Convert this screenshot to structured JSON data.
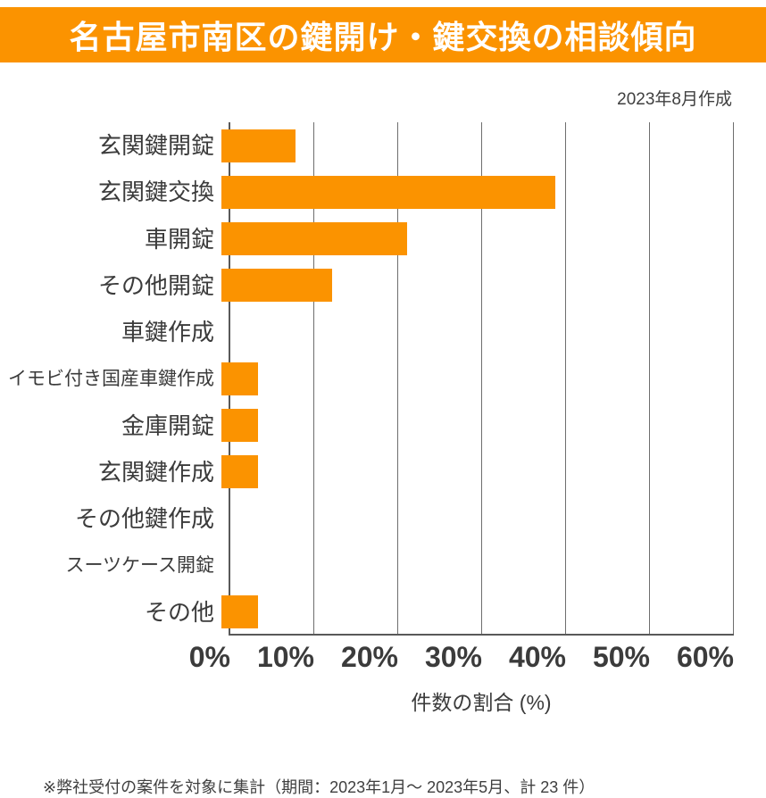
{
  "banner": {
    "title": "名古屋市南区の鍵開け・鍵交換の相談傾向"
  },
  "date_note": "2023年8月作成",
  "footnote": "※弊社受付の案件を対象に集計（期間：2023年1月～ 2023年5月、計 23 件）",
  "colors": {
    "accent_orange": "#fb9300",
    "text_dark": "#3b3b3b",
    "gridline_gray": "#6e6e6e",
    "axis_gray": "#595959"
  },
  "chart_data": {
    "type": "bar",
    "orientation": "horizontal",
    "title": "名古屋市南区の鍵開け・鍵交換の相談傾向",
    "categories": [
      "玄関鍵開錠",
      "玄関鍵交換",
      "車開錠",
      "その他開錠",
      "車鍵作成",
      "イモビ付き国産車鍵作成",
      "金庫開錠",
      "玄関鍵作成",
      "その他鍵作成",
      "スーツケース開錠",
      "その他"
    ],
    "values": [
      8.7,
      39.1,
      21.7,
      13.0,
      0,
      4.3,
      4.3,
      4.3,
      0,
      0,
      4.3
    ],
    "x_ticks": [
      "0%",
      "10%",
      "20%",
      "30%",
      "40%",
      "50%",
      "60%"
    ],
    "xlim": [
      0,
      60
    ],
    "xlabel": "件数の割合 (%)",
    "bar_color": "#fb9300",
    "grid": true,
    "legend": false
  }
}
